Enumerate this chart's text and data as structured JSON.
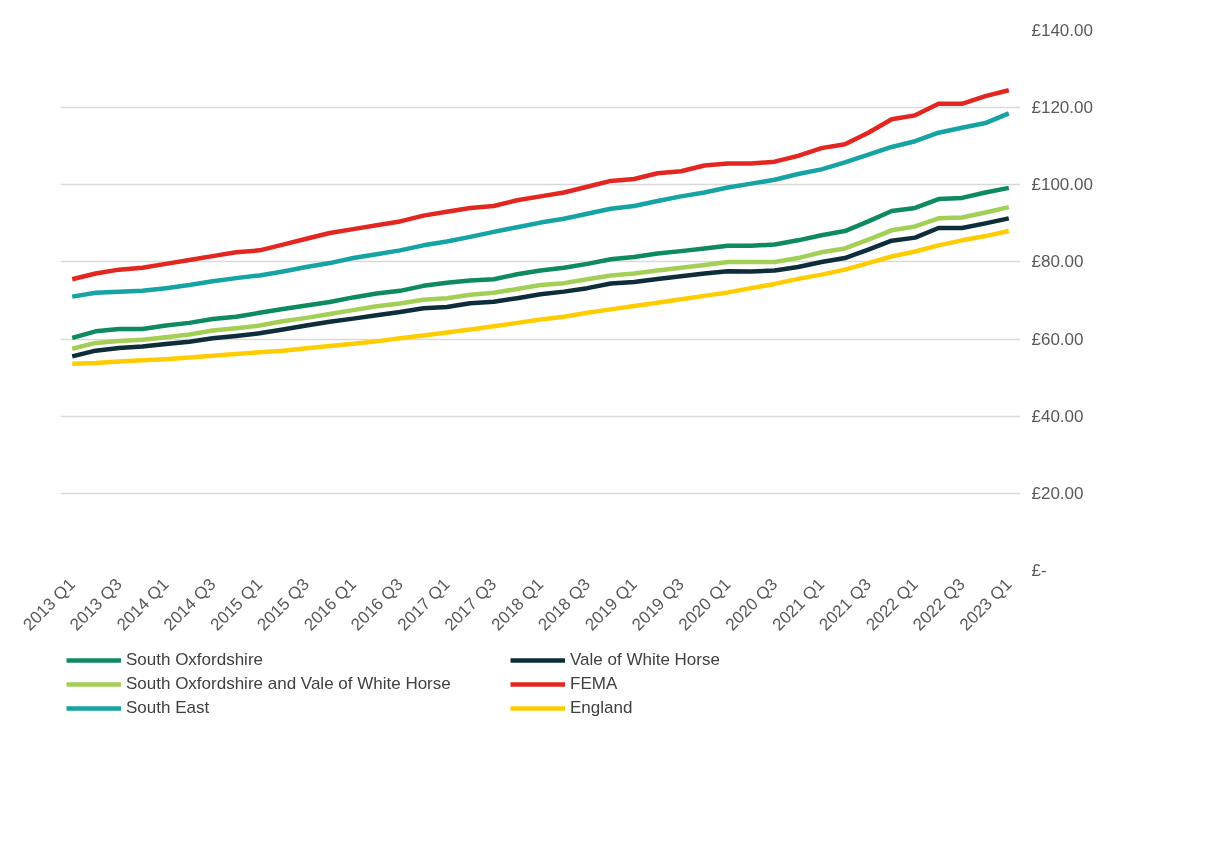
{
  "chart_data": {
    "type": "line",
    "categories": [
      "2013 Q1",
      null,
      "2013 Q3",
      null,
      "2014 Q1",
      null,
      "2014 Q3",
      null,
      "2015 Q1",
      null,
      "2015 Q3",
      null,
      "2016 Q1",
      null,
      "2016 Q3",
      null,
      "2017 Q1",
      null,
      "2017 Q3",
      null,
      "2018 Q1",
      null,
      "2018 Q3",
      null,
      "2019 Q1",
      null,
      "2019 Q3",
      null,
      "2020 Q1",
      null,
      "2020 Q3",
      null,
      "2021 Q1",
      null,
      "2021 Q3",
      null,
      "2022 Q1",
      null,
      "2022 Q3",
      null,
      "2023 Q1"
    ],
    "series": [
      {
        "name": "South Oxfordshire",
        "color": "#0e8a5f",
        "values": [
          60.3,
          62,
          62.6,
          62.6,
          63.5,
          64.2,
          65.2,
          65.8,
          66.8,
          67.8,
          68.7,
          69.6,
          70.8,
          71.8,
          72.5,
          73.8,
          74.6,
          75.2,
          75.5,
          76.8,
          77.8,
          78.5,
          79.5,
          80.7,
          81.3,
          82.2,
          82.8,
          83.5,
          84.2,
          84.2,
          84.5,
          85.6,
          86.9,
          88,
          90.5,
          93.2,
          94,
          96.3,
          96.6,
          98,
          99.2
        ]
      },
      {
        "name": "Vale of White Horse",
        "color": "#0d2d3a",
        "values": [
          55.5,
          57,
          57.7,
          58.1,
          58.7,
          59.3,
          60.2,
          60.8,
          61.5,
          62.5,
          63.5,
          64.5,
          65.3,
          66.2,
          67,
          68,
          68.3,
          69.3,
          69.7,
          70.6,
          71.6,
          72.3,
          73.2,
          74.4,
          74.8,
          75.6,
          76.3,
          77,
          77.6,
          77.5,
          77.8,
          78.7,
          80,
          81,
          83.2,
          85.5,
          86.3,
          88.8,
          88.8,
          90,
          91.3
        ]
      },
      {
        "name": "South Oxfordshire and Vale of White Horse",
        "color": "#a4cf57",
        "values": [
          57.5,
          59,
          59.5,
          59.8,
          60.5,
          61.2,
          62.2,
          62.8,
          63.5,
          64.6,
          65.5,
          66.5,
          67.5,
          68.5,
          69.2,
          70.2,
          70.6,
          71.5,
          72,
          73,
          74,
          74.5,
          75.5,
          76.5,
          77,
          77.8,
          78.5,
          79.2,
          80,
          80,
          80,
          81,
          82.5,
          83.5,
          85.8,
          88.2,
          89.2,
          91.3,
          91.5,
          92.8,
          94.2
        ]
      },
      {
        "name": "FEMA",
        "color": "#e3261f",
        "values": [
          75.5,
          77,
          78,
          78.5,
          79.5,
          80.5,
          81.5,
          82.5,
          83,
          84.5,
          86,
          87.5,
          88.5,
          89.5,
          90.5,
          92,
          93,
          94,
          94.5,
          96,
          97,
          98,
          99.5,
          101,
          101.5,
          103,
          103.5,
          105,
          105.5,
          105.5,
          106,
          107.5,
          109.5,
          110.5,
          113.5,
          117,
          118,
          121,
          121,
          123,
          124.5
        ]
      },
      {
        "name": "South East",
        "color": "#16a3a3",
        "values": [
          71,
          72,
          72.3,
          72.5,
          73.2,
          74,
          75,
          75.8,
          76.5,
          77.5,
          78.7,
          79.7,
          81,
          82,
          83,
          84.3,
          85.3,
          86.5,
          87.8,
          89,
          90.2,
          91.2,
          92.5,
          93.8,
          94.5,
          95.8,
          97,
          98,
          99.3,
          100.3,
          101.3,
          102.8,
          104,
          105.8,
          107.8,
          109.8,
          111.3,
          113.5,
          114.8,
          116,
          118.5
        ]
      },
      {
        "name": "England",
        "color": "#ffcc00",
        "values": [
          53.6,
          53.8,
          54.2,
          54.5,
          54.8,
          55.2,
          55.7,
          56.1,
          56.6,
          57,
          57.6,
          58.2,
          58.8,
          59.4,
          60.2,
          60.9,
          61.7,
          62.5,
          63.3,
          64.2,
          65.1,
          65.8,
          66.8,
          67.7,
          68.6,
          69.4,
          70.3,
          71.2,
          72.1,
          73.2,
          74.3,
          75.6,
          76.7,
          78,
          79.7,
          81.4,
          82.7,
          84.3,
          85.6,
          86.7,
          88
        ]
      }
    ],
    "ylim": [
      0,
      140
    ],
    "yticks": [
      {
        "value": 0,
        "label": "£-"
      },
      {
        "value": 20,
        "label": "£20.00"
      },
      {
        "value": 40,
        "label": "£40.00"
      },
      {
        "value": 60,
        "label": "£60.00"
      },
      {
        "value": 80,
        "label": "£80.00"
      },
      {
        "value": 100,
        "label": "£100.00"
      },
      {
        "value": 120,
        "label": "£120.00"
      },
      {
        "value": 140,
        "label": "£140.00"
      }
    ],
    "grid": "y",
    "legend": "bottom",
    "marker": "none",
    "line_style": "solid"
  }
}
